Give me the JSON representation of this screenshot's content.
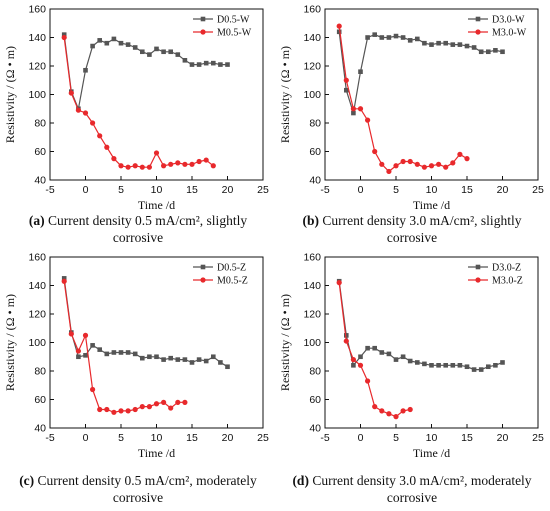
{
  "chart_data": [
    {
      "type": "line",
      "xlabel": "Time /d",
      "ylabel": "Resistivity / (Ω • m)",
      "xlim": [
        -5,
        25
      ],
      "ylim": [
        40,
        160
      ],
      "xticks": [
        -5,
        0,
        5,
        10,
        15,
        20,
        25
      ],
      "yticks": [
        40,
        60,
        80,
        100,
        120,
        140,
        160
      ],
      "legend_position": "top-right",
      "series": [
        {
          "name": "D0.5-W",
          "color": "#555555",
          "marker": "square",
          "x": [
            -3,
            -2,
            -1,
            0,
            1,
            2,
            3,
            4,
            5,
            6,
            7,
            8,
            9,
            10,
            11,
            12,
            13,
            14,
            15,
            16,
            17,
            18,
            19,
            20
          ],
          "y": [
            142,
            102,
            90,
            117,
            134,
            138,
            136,
            139,
            136,
            135,
            133,
            130,
            128,
            132,
            130,
            130,
            128,
            124,
            121,
            121,
            122,
            122,
            121,
            121
          ]
        },
        {
          "name": "M0.5-W",
          "color": "#e8292c",
          "marker": "circle",
          "x": [
            -3,
            -2,
            -1,
            0,
            1,
            2,
            3,
            4,
            5,
            6,
            7,
            8,
            9,
            10,
            11,
            12,
            13,
            14,
            15,
            16,
            17,
            18
          ],
          "y": [
            140,
            101,
            89,
            87,
            80,
            71,
            63,
            55,
            50,
            49,
            50,
            49,
            49,
            59,
            50,
            51,
            52,
            51,
            51,
            53,
            54,
            50
          ]
        }
      ],
      "caption_label": "(a)",
      "caption_text": " Current density 0.5 mA/cm², slightly corrosive"
    },
    {
      "type": "line",
      "xlabel": "Time /d",
      "ylabel": "Resistivity / (Ω • m)",
      "xlim": [
        -5,
        25
      ],
      "ylim": [
        40,
        160
      ],
      "xticks": [
        -5,
        0,
        5,
        10,
        15,
        20,
        25
      ],
      "yticks": [
        40,
        60,
        80,
        100,
        120,
        140,
        160
      ],
      "legend_position": "top-right",
      "series": [
        {
          "name": "D3.0-W",
          "color": "#555555",
          "marker": "square",
          "x": [
            -3,
            -2,
            -1,
            0,
            1,
            2,
            3,
            4,
            5,
            6,
            7,
            8,
            9,
            10,
            11,
            12,
            13,
            14,
            15,
            16,
            17,
            18,
            19,
            20
          ],
          "y": [
            144,
            103,
            87,
            116,
            140,
            142,
            140,
            140,
            141,
            140,
            138,
            139,
            136,
            135,
            136,
            136,
            135,
            135,
            134,
            133,
            130,
            130,
            131,
            130
          ]
        },
        {
          "name": "M3.0-W",
          "color": "#e8292c",
          "marker": "circle",
          "x": [
            -3,
            -2,
            -1,
            0,
            1,
            2,
            3,
            4,
            5,
            6,
            7,
            8,
            9,
            10,
            11,
            12,
            13,
            14,
            15
          ],
          "y": [
            148,
            110,
            90,
            90,
            82,
            60,
            51,
            46,
            50,
            53,
            53,
            51,
            49,
            50,
            51,
            49,
            52,
            58,
            55
          ]
        }
      ],
      "caption_label": "(b)",
      "caption_text": " Current density 3.0 mA/cm², slightly corrosive"
    },
    {
      "type": "line",
      "xlabel": "Time /d",
      "ylabel": "Resistivity / (Ω • m)",
      "xlim": [
        -5,
        25
      ],
      "ylim": [
        40,
        160
      ],
      "xticks": [
        -5,
        0,
        5,
        10,
        15,
        20,
        25
      ],
      "yticks": [
        40,
        60,
        80,
        100,
        120,
        140,
        160
      ],
      "legend_position": "top-right",
      "series": [
        {
          "name": "D0.5-Z",
          "color": "#555555",
          "marker": "square",
          "x": [
            -3,
            -2,
            -1,
            0,
            1,
            2,
            3,
            4,
            5,
            6,
            7,
            8,
            9,
            10,
            11,
            12,
            13,
            14,
            15,
            16,
            17,
            18,
            19,
            20
          ],
          "y": [
            145,
            107,
            90,
            91,
            98,
            95,
            92,
            93,
            93,
            93,
            92,
            89,
            90,
            90,
            88,
            89,
            88,
            88,
            86,
            88,
            87,
            90,
            86,
            83
          ]
        },
        {
          "name": "M0.5-Z",
          "color": "#e8292c",
          "marker": "circle",
          "x": [
            -3,
            -2,
            -1,
            0,
            1,
            2,
            3,
            4,
            5,
            6,
            7,
            8,
            9,
            10,
            11,
            12,
            13,
            14
          ],
          "y": [
            143,
            106,
            94,
            105,
            67,
            53,
            53,
            51,
            52,
            52,
            53,
            55,
            55,
            57,
            58,
            54,
            58,
            58
          ]
        }
      ],
      "caption_label": "(c)",
      "caption_text": " Current density 0.5 mA/cm², moderately corrosive"
    },
    {
      "type": "line",
      "xlabel": "Time /d",
      "ylabel": "Resistivity / (Ω • m)",
      "xlim": [
        -5,
        25
      ],
      "ylim": [
        40,
        160
      ],
      "xticks": [
        -5,
        0,
        5,
        10,
        15,
        20,
        25
      ],
      "yticks": [
        40,
        60,
        80,
        100,
        120,
        140,
        160
      ],
      "legend_position": "top-right",
      "series": [
        {
          "name": "D3.0-Z",
          "color": "#555555",
          "marker": "square",
          "x": [
            -3,
            -2,
            -1,
            0,
            1,
            2,
            3,
            4,
            5,
            6,
            7,
            8,
            9,
            10,
            11,
            12,
            13,
            14,
            15,
            16,
            17,
            18,
            19,
            20
          ],
          "y": [
            143,
            105,
            84,
            90,
            96,
            96,
            93,
            92,
            88,
            90,
            87,
            86,
            85,
            84,
            84,
            84,
            84,
            84,
            83,
            81,
            81,
            83,
            84,
            86
          ]
        },
        {
          "name": "M3.0-Z",
          "color": "#e8292c",
          "marker": "circle",
          "x": [
            -3,
            -2,
            -1,
            0,
            1,
            2,
            3,
            4,
            5,
            6,
            7
          ],
          "y": [
            142,
            101,
            88,
            84,
            73,
            55,
            52,
            50,
            48,
            52,
            53
          ]
        }
      ],
      "caption_label": "(d)",
      "caption_text": " Current density 3.0 mA/cm², moderately corrosive"
    }
  ]
}
